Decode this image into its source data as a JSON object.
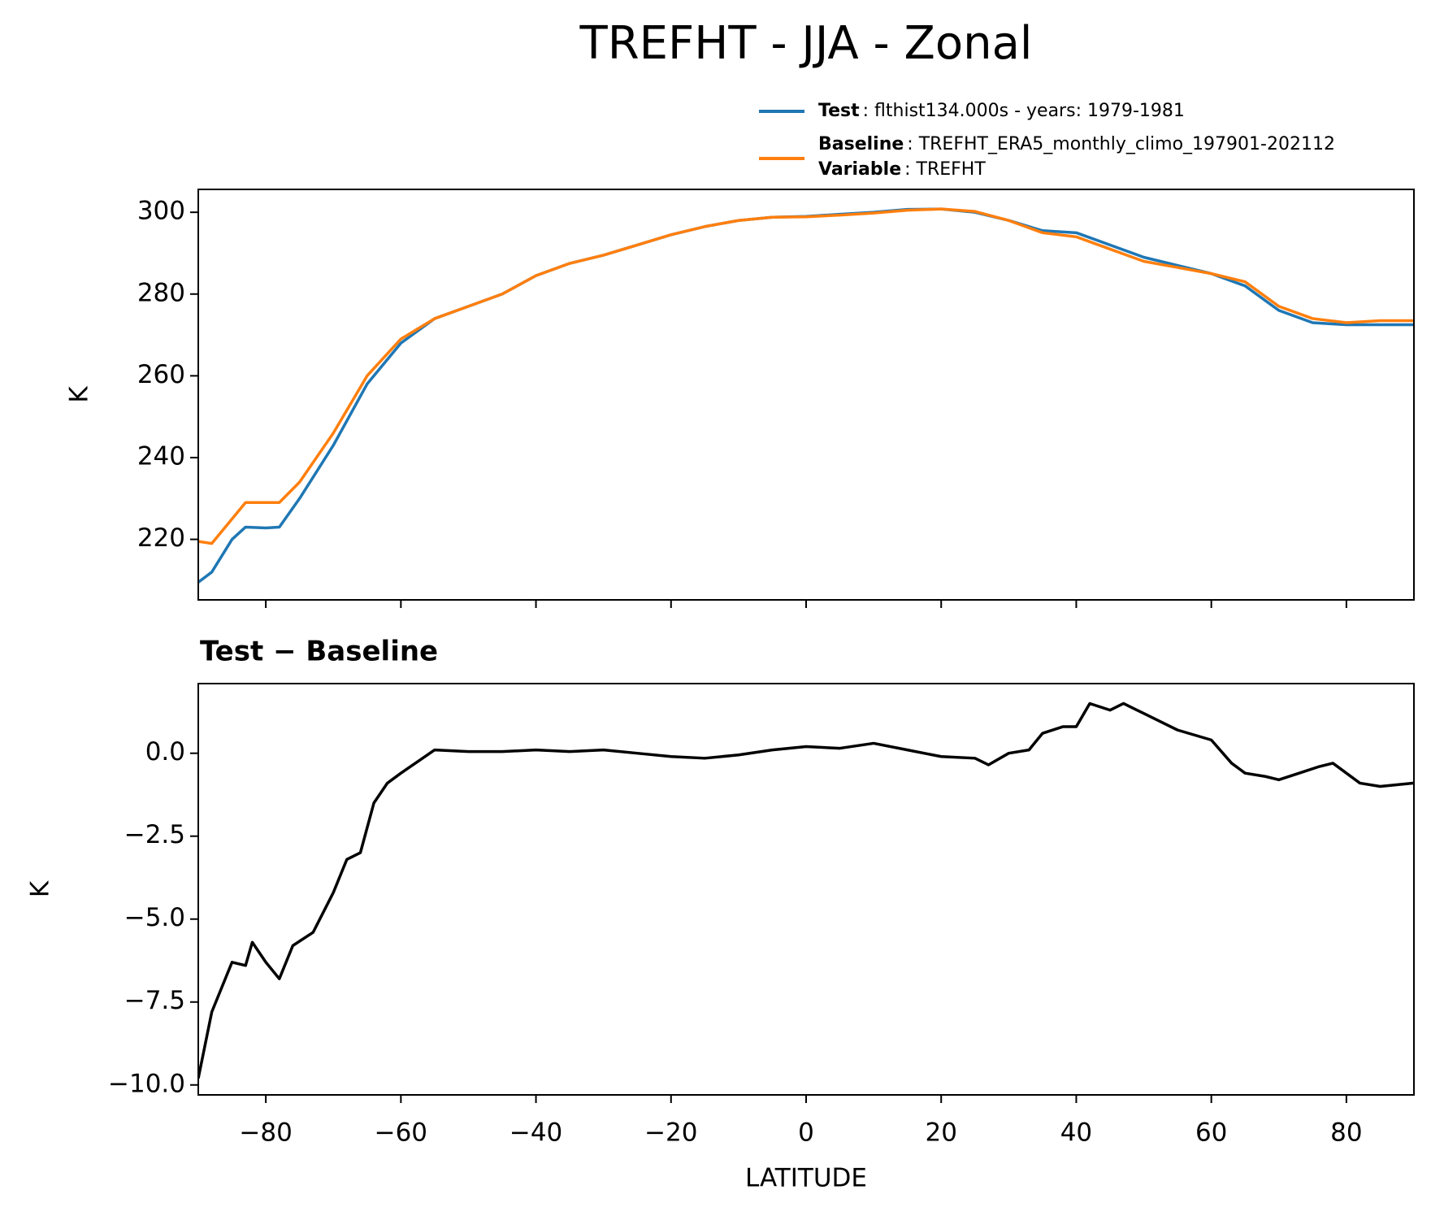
{
  "title": "TREFHT - JJA - Zonal",
  "chart_data": [
    {
      "type": "line",
      "ylabel": "K",
      "x": [
        -90,
        -88,
        -85,
        -83,
        -80,
        -78,
        -75,
        -70,
        -65,
        -60,
        -55,
        -50,
        -45,
        -40,
        -35,
        -30,
        -25,
        -20,
        -15,
        -10,
        -5,
        0,
        5,
        10,
        15,
        20,
        25,
        30,
        35,
        40,
        45,
        50,
        55,
        60,
        65,
        70,
        75,
        80,
        85,
        90
      ],
      "series": [
        {
          "name": "Test",
          "description": ": flthist134.000s - years: 1979-1981",
          "color": "#1f77b4",
          "values": [
            209.5,
            212,
            220,
            223,
            222.8,
            223,
            230,
            243,
            258,
            268,
            274,
            277,
            280,
            284.5,
            287.5,
            289.5,
            292,
            294.5,
            296.5,
            298,
            298.8,
            299,
            299.5,
            300,
            300.7,
            300.8,
            300,
            298,
            295.5,
            295,
            292,
            289,
            287,
            285,
            282,
            276,
            273,
            272.5,
            272.5,
            272.5
          ]
        },
        {
          "name": "Baseline",
          "description": ": TREFHT_ERA5_monthly_climo_197901-202112",
          "color": "#ff7f0e",
          "values": [
            219.5,
            219,
            225,
            229,
            229,
            229,
            234,
            246,
            260,
            269,
            274,
            277,
            280,
            284.5,
            287.5,
            289.5,
            292,
            294.5,
            296.5,
            298,
            298.8,
            298.9,
            299.3,
            299.8,
            300.5,
            300.8,
            300.2,
            298,
            295,
            294,
            291,
            288,
            286.5,
            285,
            283,
            277,
            274,
            273,
            273.5,
            273.5
          ]
        }
      ],
      "legend_variable": {
        "name": "Variable",
        "description": ": TREFHT"
      },
      "xlim": [
        -90,
        90
      ],
      "xticks": [
        -80,
        -60,
        -40,
        -20,
        0,
        20,
        40,
        60,
        80
      ],
      "ylim": [
        205.2,
        305.6
      ],
      "yticks": [
        220,
        240,
        260,
        280,
        300
      ]
    },
    {
      "type": "line",
      "title": "Test − Baseline",
      "xlabel": "LATITUDE",
      "ylabel": "K",
      "x": [
        -90,
        -88,
        -85,
        -83,
        -82,
        -80,
        -78,
        -76,
        -73,
        -70,
        -68,
        -66,
        -64,
        -62,
        -60,
        -55,
        -50,
        -45,
        -40,
        -35,
        -30,
        -25,
        -20,
        -15,
        -10,
        -5,
        0,
        5,
        10,
        15,
        20,
        25,
        27,
        30,
        33,
        35,
        38,
        40,
        42,
        45,
        47,
        50,
        55,
        60,
        63,
        65,
        68,
        70,
        73,
        76,
        78,
        80,
        82,
        85,
        90
      ],
      "series": [
        {
          "color": "#000000",
          "values": [
            -9.8,
            -7.8,
            -6.3,
            -6.4,
            -5.7,
            -6.3,
            -6.8,
            -5.8,
            -5.4,
            -4.2,
            -3.2,
            -3.0,
            -1.5,
            -0.9,
            -0.6,
            0.1,
            0.05,
            0.05,
            0.1,
            0.05,
            0.1,
            0.0,
            -0.1,
            -0.15,
            -0.05,
            0.1,
            0.2,
            0.15,
            0.3,
            0.1,
            -0.1,
            -0.15,
            -0.35,
            0.0,
            0.1,
            0.6,
            0.8,
            0.8,
            1.5,
            1.3,
            1.5,
            1.2,
            0.7,
            0.4,
            -0.3,
            -0.6,
            -0.7,
            -0.8,
            -0.6,
            -0.4,
            -0.3,
            -0.6,
            -0.9,
            -1.0,
            -0.9
          ]
        }
      ],
      "xlim": [
        -90,
        90
      ],
      "xticks": [
        {
          "value": -80,
          "label": "−80"
        },
        {
          "value": -60,
          "label": "−60"
        },
        {
          "value": -40,
          "label": "−40"
        },
        {
          "value": -20,
          "label": "−20"
        },
        0,
        20,
        40,
        60,
        80
      ],
      "ylim": [
        -10.3,
        2.1
      ],
      "yticks": [
        {
          "value": -10,
          "label": "−10.0"
        },
        {
          "value": -7.5,
          "label": "−7.5"
        },
        {
          "value": -5,
          "label": "−5.0"
        },
        {
          "value": -2.5,
          "label": "−2.5"
        },
        {
          "value": 0,
          "label": "0.0"
        }
      ]
    }
  ]
}
